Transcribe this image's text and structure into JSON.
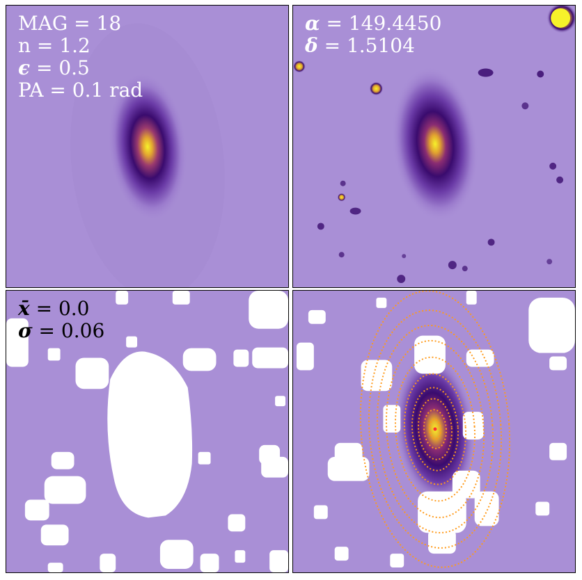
{
  "panels": {
    "model": {
      "mag": "MAG = 18",
      "n": "n = 1.2",
      "eps_symbol": "ϵ",
      "eps_value": " = 0.5",
      "pa": "PA = 0.1 rad"
    },
    "observed": {
      "alpha_symbol": "α",
      "alpha_value": " = 149.4450",
      "delta_symbol": "δ",
      "delta_value": " = 1.5104"
    },
    "masked": {
      "xbar_symbol": "x̄",
      "xbar_value": " = 0.0",
      "sigma_symbol": "σ",
      "sigma_value": " = 0.06"
    },
    "isophotes": {}
  },
  "colors": {
    "background": "#a98fd6",
    "core": "#f6f22a",
    "dark_halo": "#3a0b6e",
    "contour": "#ff9a1a",
    "mask": "#ffffff"
  }
}
